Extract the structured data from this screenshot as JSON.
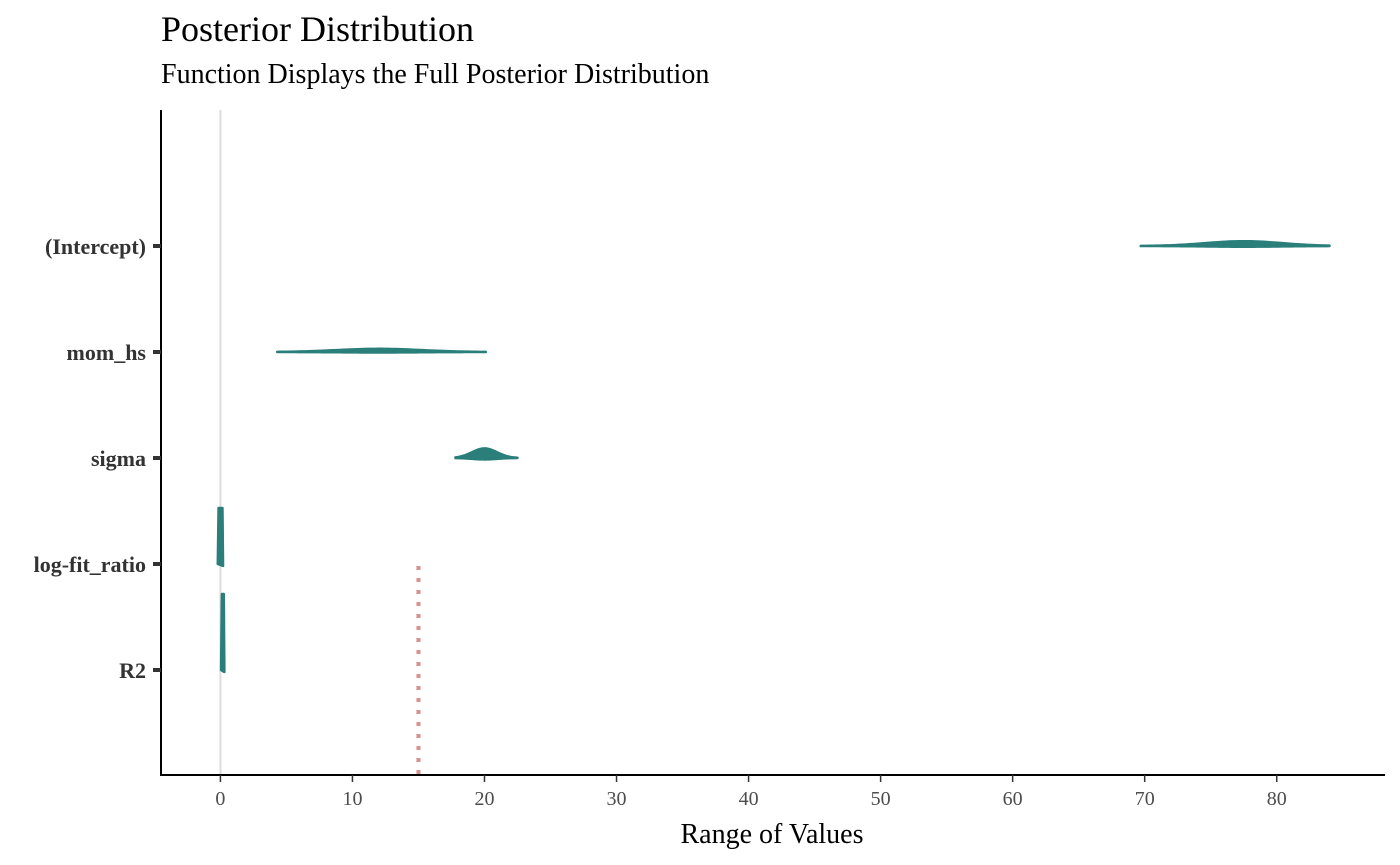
{
  "title": "Posterior Distribution",
  "subtitle": "Function Displays the Full Posterior Distribution",
  "colors": {
    "density": "#2a7f7b",
    "zero_line": "#dddddd",
    "reference_line": "#d9918f",
    "axis": "#000000"
  },
  "chart_data": {
    "type": "ridgeline",
    "title": "Posterior Distribution",
    "subtitle": "Function Displays the Full Posterior Distribution",
    "xlabel": "Range of Values",
    "ylabel": "",
    "xlim": [
      -4.5,
      88.2
    ],
    "x_ticks": [
      0,
      10,
      20,
      30,
      40,
      50,
      60,
      70,
      80
    ],
    "x_tick_labels": [
      "0",
      "10",
      "20",
      "30",
      "40",
      "50",
      "60",
      "70",
      "80"
    ],
    "categories": [
      "(Intercept)",
      "mom_hs",
      "sigma",
      "log-fit_ratio",
      "R2"
    ],
    "series": [
      {
        "parameter": "(Intercept)",
        "min": 69.7,
        "max": 84.0,
        "mode": 77.5,
        "peak_height": 0.06
      },
      {
        "parameter": "mom_hs",
        "min": 4.3,
        "max": 20.1,
        "mode": 12.0,
        "peak_height": 0.04
      },
      {
        "parameter": "sigma",
        "min": 17.8,
        "max": 22.5,
        "mode": 20.0,
        "peak_height": 0.12
      },
      {
        "parameter": "log-fit_ratio",
        "min": -0.2,
        "max": 0.2,
        "mode": 0.0,
        "peak_height": 0.7
      },
      {
        "parameter": "R2",
        "min": 0.05,
        "max": 0.3,
        "mode": 0.2,
        "peak_height": 0.95
      }
    ],
    "reference_lines": [
      {
        "x": 0,
        "style": "solid",
        "color": "#dddddd"
      },
      {
        "x": 15,
        "style": "dotted",
        "color": "#d9918f"
      }
    ],
    "grid": false
  }
}
